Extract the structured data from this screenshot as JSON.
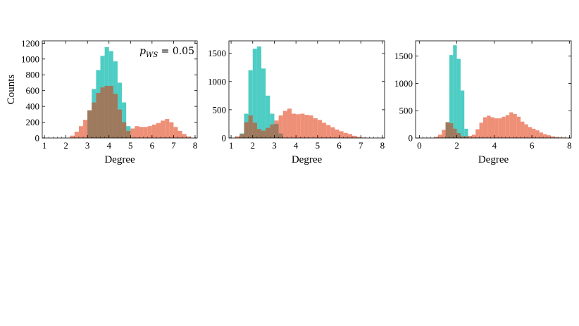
{
  "colors": {
    "series_a": "#4ecdc4",
    "series_b": "#ee8f77",
    "overlap": "#9d7a5e",
    "axis": "#000000"
  },
  "chart_data": [
    {
      "type": "bar",
      "subtype": "overlaid-histogram",
      "xlabel": "Degree",
      "ylabel": "Counts",
      "xlim": [
        0.9,
        8.1
      ],
      "ylim": [
        0,
        1230
      ],
      "xticks": [
        1,
        2,
        3,
        4,
        5,
        6,
        7,
        8
      ],
      "yticks": [
        0,
        200,
        400,
        600,
        800,
        1000,
        1200
      ],
      "annotation": {
        "var": "p",
        "sub": "WS",
        "rest": " = 0.05"
      },
      "bin_width": 0.2,
      "series": [
        {
          "bin_starts": [
            3.0,
            3.2,
            3.4,
            3.6,
            3.8,
            4.0,
            4.2,
            4.4,
            4.6,
            4.8
          ],
          "values": [
            350,
            620,
            860,
            1040,
            1150,
            1100,
            970,
            700,
            450,
            150
          ]
        },
        {
          "bin_starts": [
            2.2,
            2.4,
            2.6,
            2.8,
            3.0,
            3.2,
            3.4,
            3.6,
            3.8,
            4.0,
            4.2,
            4.4,
            4.6,
            4.8,
            5.0,
            5.2,
            5.4,
            5.6,
            5.8,
            6.0,
            6.2,
            6.4,
            6.6,
            6.8,
            7.0,
            7.2,
            7.4,
            7.6
          ],
          "values": [
            30,
            80,
            150,
            230,
            350,
            450,
            570,
            640,
            660,
            660,
            560,
            360,
            200,
            90,
            120,
            150,
            140,
            140,
            150,
            170,
            190,
            220,
            240,
            200,
            140,
            90,
            50,
            20
          ]
        }
      ]
    },
    {
      "type": "bar",
      "subtype": "overlaid-histogram",
      "xlabel": "Degree",
      "ylabel": "",
      "xlim": [
        0.9,
        8.1
      ],
      "ylim": [
        0,
        1720
      ],
      "xticks": [
        1,
        2,
        3,
        4,
        5,
        6,
        7,
        8
      ],
      "yticks": [
        0,
        500,
        1000,
        1500
      ],
      "bin_width": 0.2,
      "series": [
        {
          "bin_starts": [
            1.4,
            1.6,
            1.8,
            2.0,
            2.2,
            2.4,
            2.6,
            2.8,
            3.0,
            3.2
          ],
          "values": [
            80,
            430,
            1200,
            1580,
            1620,
            1230,
            750,
            430,
            250,
            80
          ]
        },
        {
          "bin_starts": [
            1.2,
            1.4,
            1.6,
            1.8,
            2.0,
            2.2,
            2.4,
            2.6,
            2.8,
            3.0,
            3.2,
            3.4,
            3.6,
            3.8,
            4.0,
            4.2,
            4.4,
            4.6,
            4.8,
            5.0,
            5.2,
            5.4,
            5.6,
            5.8,
            6.0,
            6.2,
            6.4,
            6.6,
            6.8,
            7.0
          ],
          "values": [
            30,
            70,
            280,
            400,
            270,
            160,
            130,
            180,
            240,
            310,
            400,
            480,
            520,
            430,
            420,
            430,
            410,
            400,
            350,
            320,
            270,
            230,
            190,
            150,
            120,
            90,
            70,
            40,
            20,
            10
          ]
        }
      ]
    },
    {
      "type": "bar",
      "subtype": "overlaid-histogram",
      "xlabel": "Degree",
      "ylabel": "",
      "xlim": [
        -0.2,
        8.1
      ],
      "ylim": [
        0,
        1780
      ],
      "xticks": [
        0,
        2,
        4,
        6,
        8
      ],
      "yticks": [
        0,
        500,
        1000,
        1500
      ],
      "bin_width": 0.2,
      "series": [
        {
          "bin_starts": [
            1.4,
            1.6,
            1.8,
            2.0,
            2.2,
            2.4
          ],
          "values": [
            290,
            1520,
            1700,
            1450,
            870,
            170
          ]
        },
        {
          "bin_starts": [
            0.8,
            1.0,
            1.2,
            1.4,
            1.6,
            1.8,
            2.0,
            2.2,
            2.4,
            2.6,
            2.8,
            3.0,
            3.2,
            3.4,
            3.6,
            3.8,
            4.0,
            4.2,
            4.4,
            4.6,
            4.8,
            5.0,
            5.2,
            5.4,
            5.6,
            5.8,
            6.0,
            6.2,
            6.4,
            6.6,
            6.8,
            7.0,
            7.2,
            7.4,
            7.6
          ],
          "values": [
            20,
            60,
            150,
            290,
            270,
            170,
            90,
            30,
            30,
            40,
            60,
            160,
            280,
            380,
            410,
            380,
            360,
            360,
            390,
            420,
            470,
            440,
            390,
            300,
            250,
            200,
            170,
            140,
            100,
            70,
            50,
            30,
            20,
            10,
            10
          ]
        }
      ]
    }
  ]
}
